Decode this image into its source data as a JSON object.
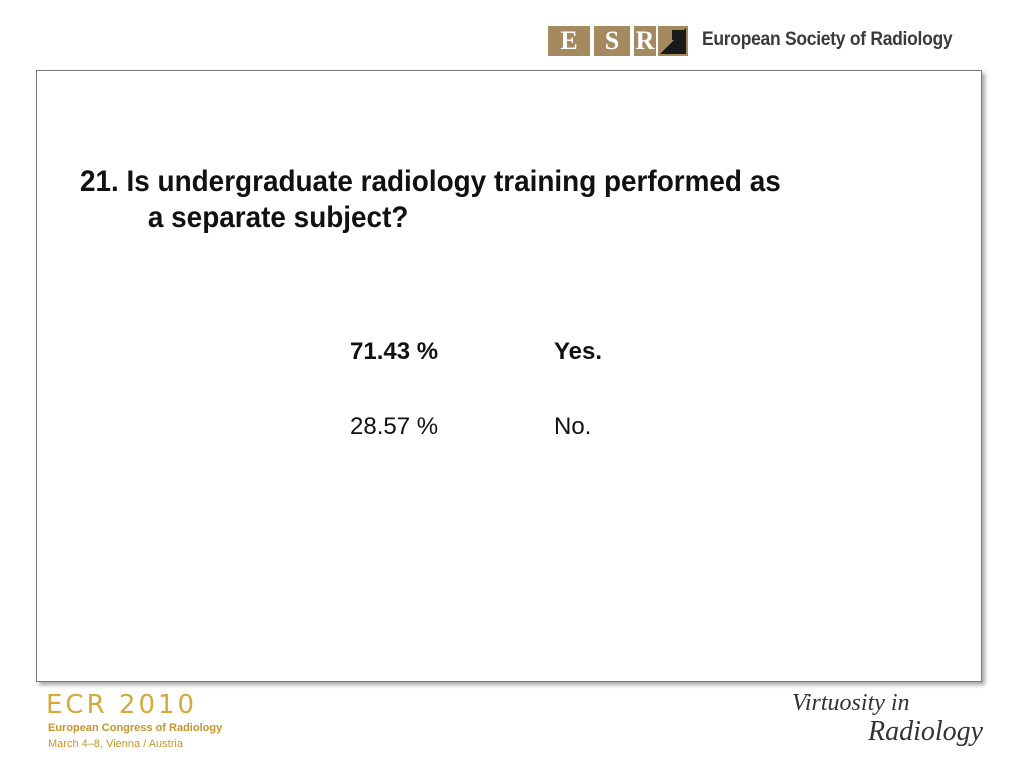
{
  "header": {
    "logo_letters": [
      "E",
      "S",
      "R"
    ],
    "org_name": "European Society of Radiology"
  },
  "slide": {
    "question_line1": "21. Is undergraduate radiology training performed as",
    "question_line2": "a separate subject?",
    "answers": [
      {
        "pct": "71.43 %",
        "label": "Yes."
      },
      {
        "pct": "28.57 %",
        "label": "No."
      }
    ]
  },
  "footer": {
    "ecr_title": "ECR 2010",
    "ecr_subtitle": "European Congress of Radiology",
    "ecr_dates": "March 4–8, Vienna / Austria",
    "tagline_1": "Virtuosity in",
    "tagline_2": "Radiology"
  },
  "colors": {
    "esr_gold": "#a58a60",
    "ecr_gold": "#d1ab3c"
  }
}
